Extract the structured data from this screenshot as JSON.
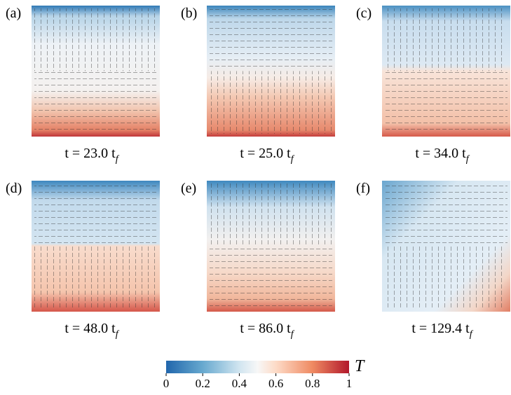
{
  "panels": [
    {
      "label": "(a)",
      "time": "t = 23.0 t",
      "subscript": "f"
    },
    {
      "label": "(b)",
      "time": "t = 25.0 t",
      "subscript": "f"
    },
    {
      "label": "(c)",
      "time": "t = 34.0 t",
      "subscript": "f"
    },
    {
      "label": "(d)",
      "time": "t = 48.0 t",
      "subscript": "f"
    },
    {
      "label": "(e)",
      "time": "t = 86.0 t",
      "subscript": "f"
    },
    {
      "label": "(f)",
      "time": "t = 129.4 t",
      "subscript": "f"
    }
  ],
  "colorbar": {
    "label": "T",
    "range": [
      0,
      1
    ],
    "ticks": [
      0,
      0.2,
      0.4,
      0.6,
      0.8,
      1
    ]
  }
}
